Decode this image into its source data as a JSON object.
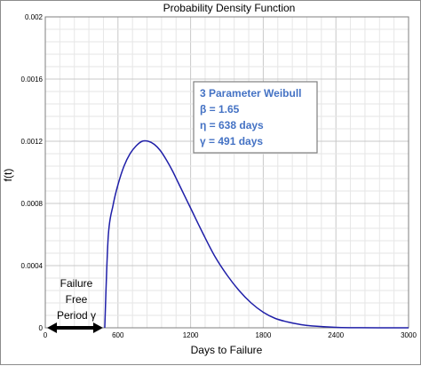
{
  "chart_data": {
    "type": "line",
    "title": "Probability Density Function",
    "xlabel": "Days to Failure",
    "ylabel": "f(t)",
    "xlim": [
      0,
      3000
    ],
    "ylim": [
      0,
      0.002
    ],
    "x_ticks": [
      0,
      600,
      1200,
      1800,
      2400,
      3000
    ],
    "y_ticks": [
      0,
      0.0004,
      0.0008,
      0.0012,
      0.0016,
      0.002
    ],
    "y_tick_labels": [
      "0",
      "0.0004",
      "0.0008",
      "0.0012",
      "0.0016",
      "0.002"
    ],
    "grid": true,
    "series": [
      {
        "color": "#1f1fa8",
        "x": [
          491,
          520,
          560,
          600,
          650,
          700,
          750,
          800,
          850,
          900,
          950,
          1000,
          1050,
          1100,
          1200,
          1300,
          1400,
          1500,
          1600,
          1700,
          1800,
          1900,
          2000,
          2100,
          2200,
          2400,
          2600,
          2800,
          3000
        ],
        "y": [
          0,
          0.00059,
          0.00079,
          0.00092,
          0.00104,
          0.00112,
          0.00117,
          0.0012,
          0.0012,
          0.00118,
          0.00114,
          0.00108,
          0.00101,
          0.00093,
          0.00077,
          0.00061,
          0.00046,
          0.00034,
          0.00024,
          0.00016,
          0.0001,
          6e-05,
          3.8e-05,
          2.2e-05,
          1.2e-05,
          3e-06,
          7e-07,
          1e-07,
          0
        ]
      }
    ],
    "annotation": {
      "lines": [
        "3 Parameter Weibull",
        "β = 1.65",
        "η = 638 days",
        "γ = 491 days"
      ],
      "color": "#4472c4"
    },
    "failure_free_period": {
      "start": 0,
      "end": 491,
      "label_lines": [
        "Failure",
        "Free",
        "Period γ"
      ]
    }
  }
}
